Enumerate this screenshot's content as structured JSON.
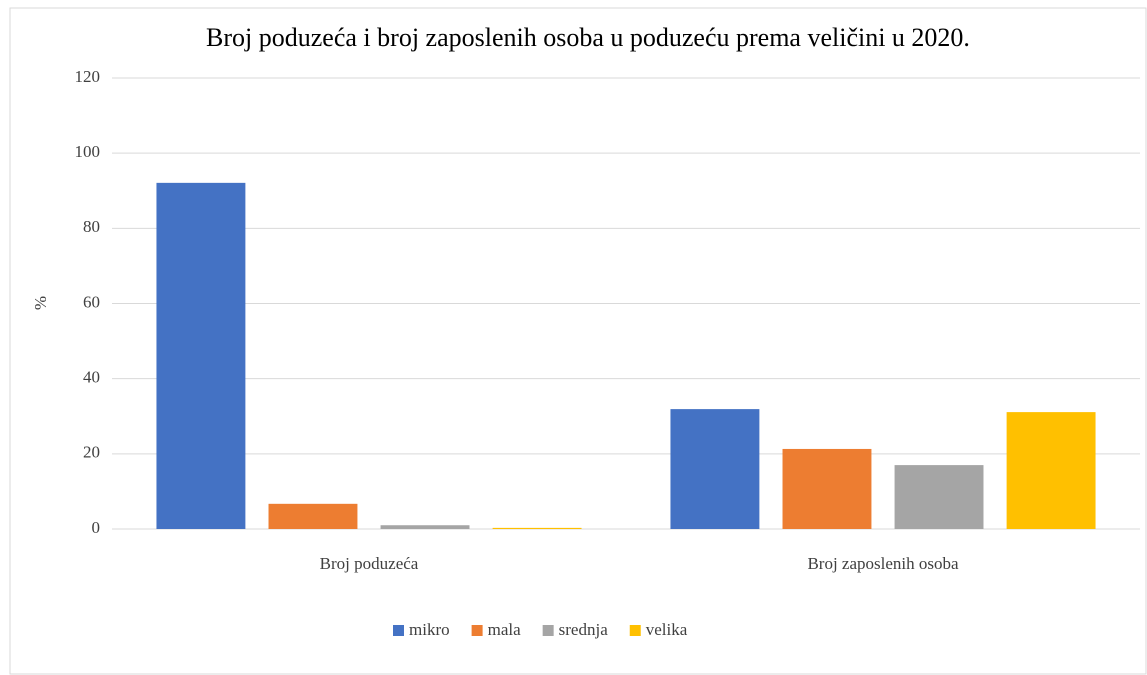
{
  "chart_data": {
    "type": "bar",
    "title": "Broj poduzeća i broj zaposlenih osoba u poduzeću prema veličini u 2020.",
    "ylabel": "%",
    "categories": [
      "Broj poduzeća",
      "Broj zaposlenih osoba"
    ],
    "series": [
      {
        "name": "mikro",
        "color": "#4472c4",
        "values": [
          92.1,
          31.9
        ]
      },
      {
        "name": "mala",
        "color": "#ed7d31",
        "values": [
          6.7,
          21.3
        ]
      },
      {
        "name": "srednja",
        "color": "#a5a5a5",
        "values": [
          1.0,
          17.0
        ]
      },
      {
        "name": "velika",
        "color": "#ffc000",
        "values": [
          0.3,
          31.1
        ]
      }
    ],
    "ylim": [
      0,
      120
    ],
    "yticks": [
      0,
      20,
      40,
      60,
      80,
      100,
      120
    ],
    "grid": true,
    "legend": "bottom"
  }
}
